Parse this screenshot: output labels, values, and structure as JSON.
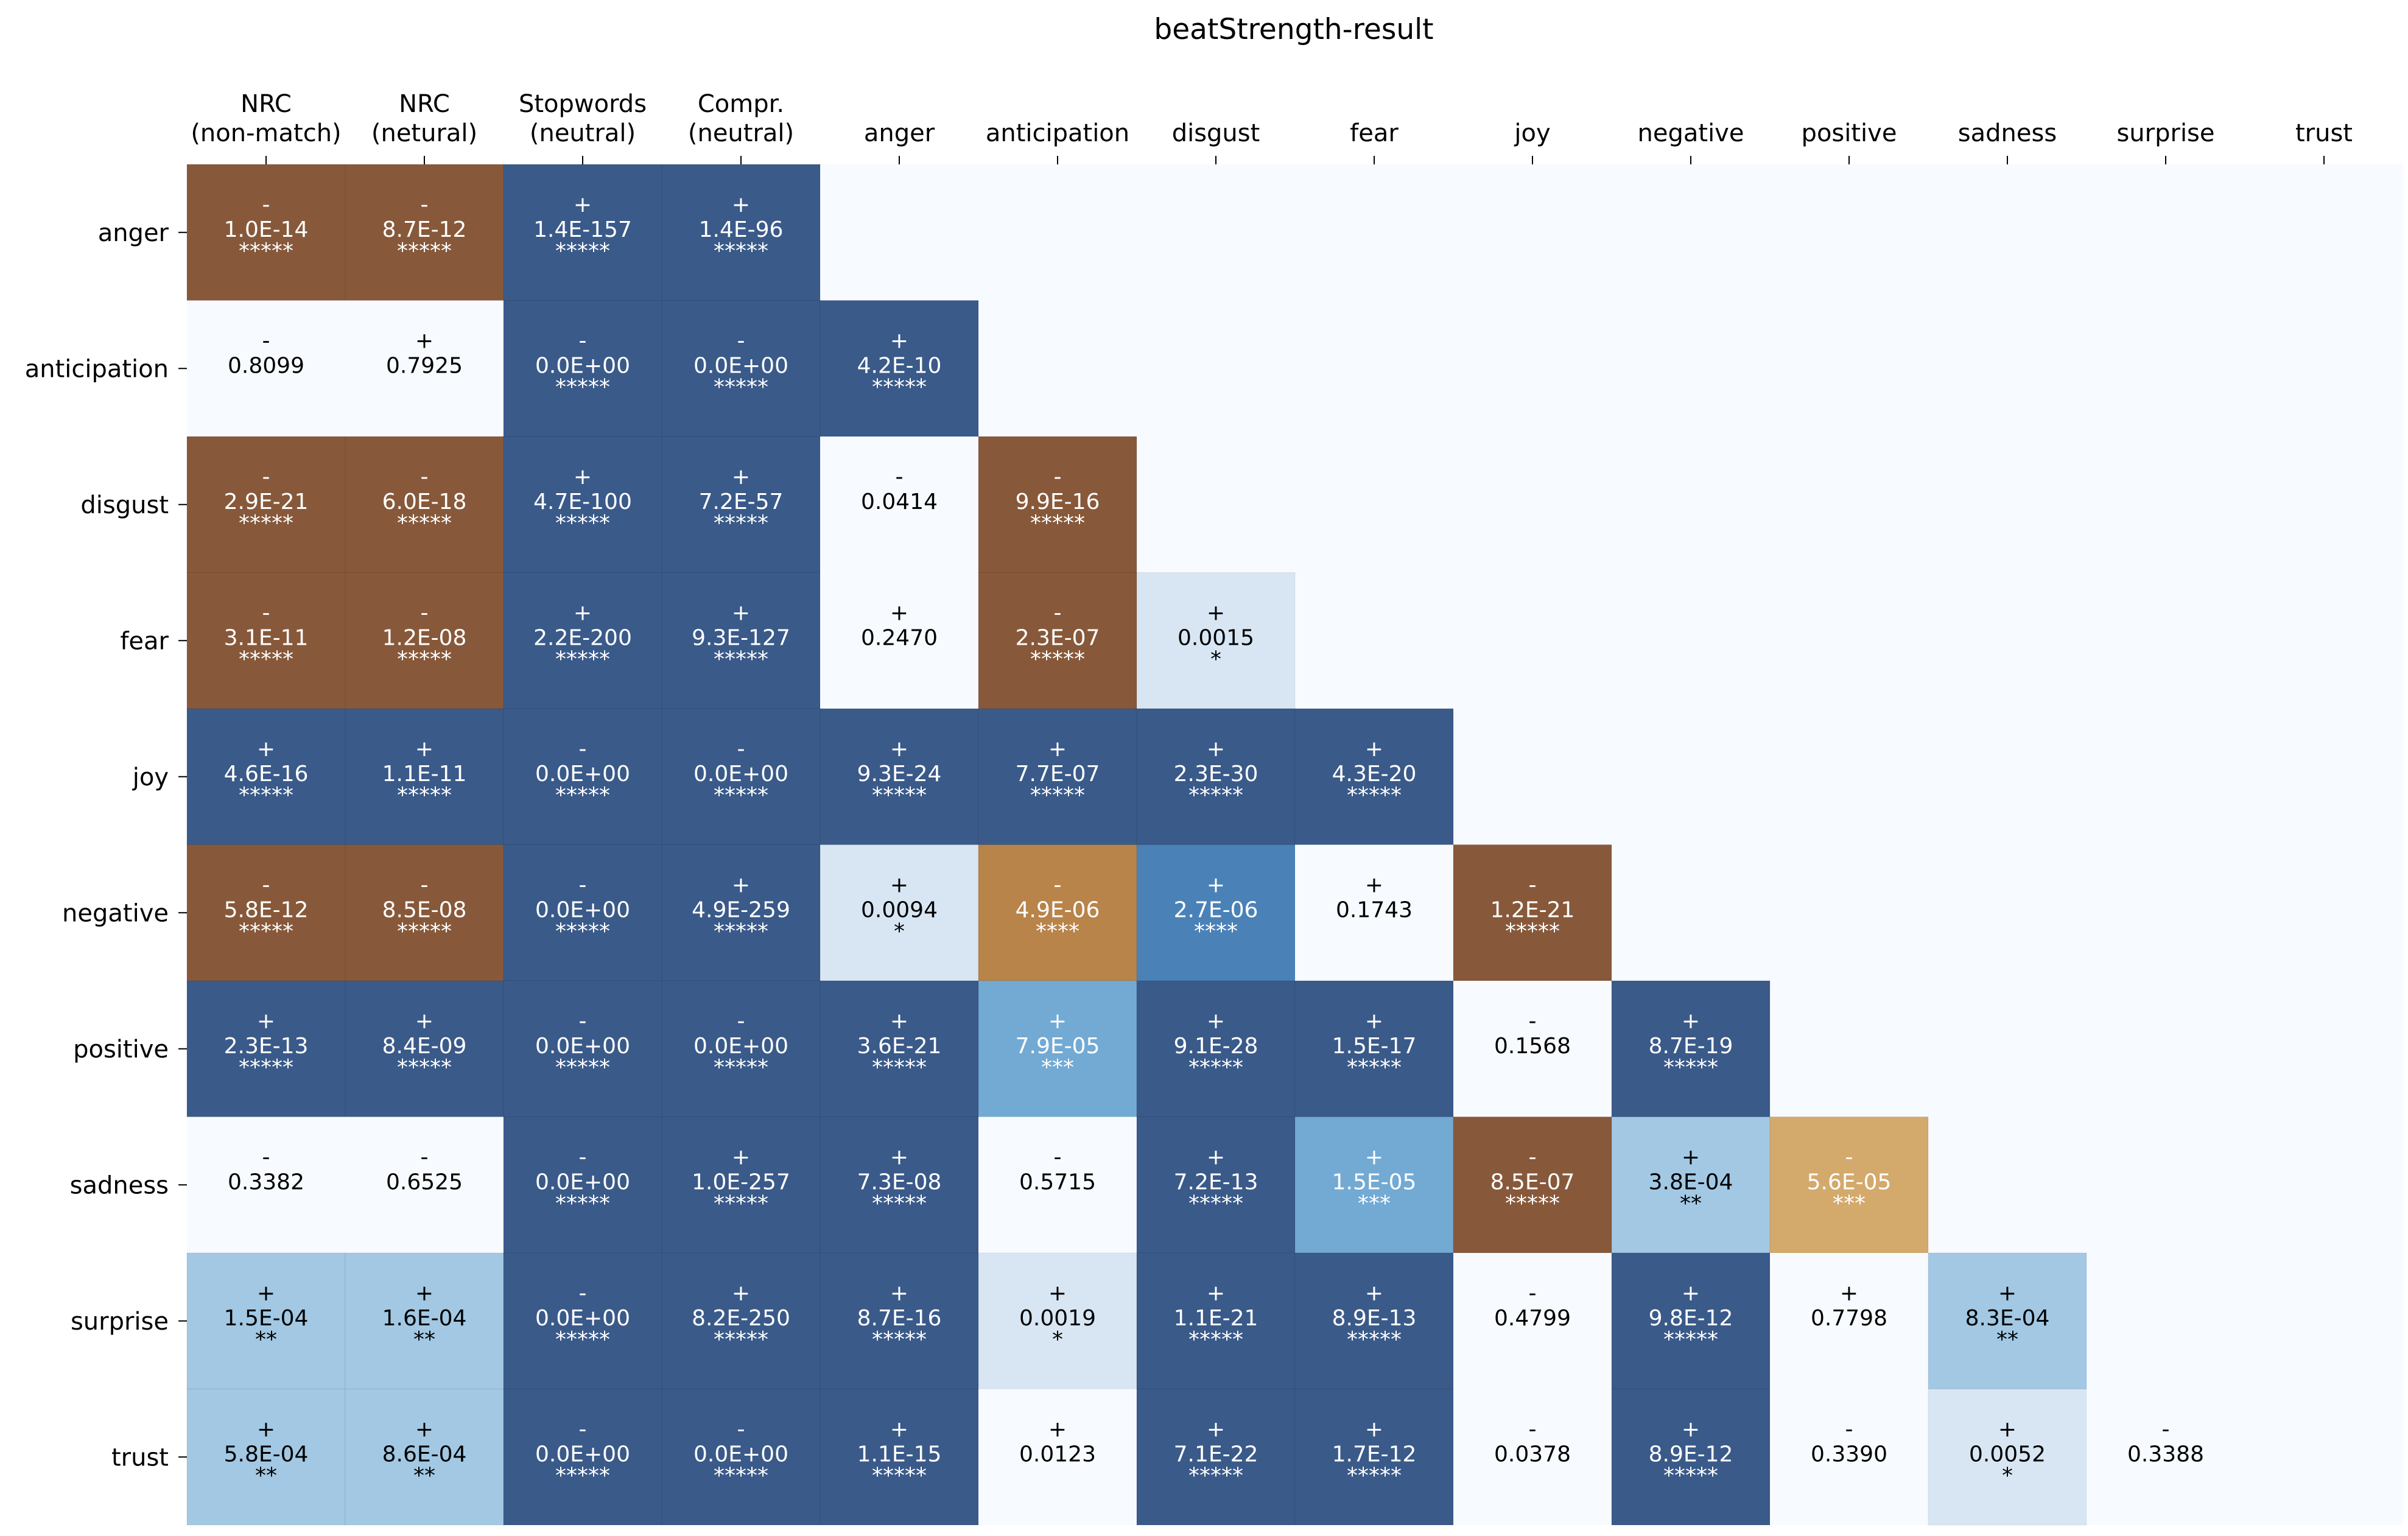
{
  "chart_data": {
    "type": "heatmap",
    "title": "beatStrength-result",
    "columns": [
      [
        "NRC",
        "(non-match)"
      ],
      [
        "NRC",
        "(netural)"
      ],
      [
        "Stopwords",
        "(neutral)"
      ],
      [
        "Compr.",
        "(neutral)"
      ],
      [
        "anger"
      ],
      [
        "anticipation"
      ],
      [
        "disgust"
      ],
      [
        "fear"
      ],
      [
        "joy"
      ],
      [
        "negative"
      ],
      [
        "positive"
      ],
      [
        "sadness"
      ],
      [
        "surprise"
      ],
      [
        "trust"
      ]
    ],
    "rows": [
      "anger",
      "anticipation",
      "disgust",
      "fear",
      "joy",
      "negative",
      "positive",
      "sadness",
      "surprise",
      "trust"
    ],
    "colors": {
      "background": "#f7fbff",
      "dark_brown": "#87593a",
      "mid_brown": "#b8844a",
      "light_brown": "#d4a96c",
      "dark_blue": "#3a5a89",
      "mid_blue": "#4a82b8",
      "blue": "#72aad4",
      "light_blue": "#a2c8e3",
      "pale_blue": "#d8e6f3"
    },
    "cells": [
      [
        [
          "-",
          "1.0E-14",
          "*****",
          "dark_brown"
        ],
        [
          "-",
          "8.7E-12",
          "*****",
          "dark_brown"
        ],
        [
          "+",
          "1.4E-157",
          "*****",
          "dark_blue"
        ],
        [
          "+",
          "1.4E-96",
          "*****",
          "dark_blue"
        ]
      ],
      [
        [
          "-",
          "0.8099",
          "",
          "background"
        ],
        [
          "+",
          "0.7925",
          "",
          "background"
        ],
        [
          "-",
          "0.0E+00",
          "*****",
          "dark_blue"
        ],
        [
          "-",
          "0.0E+00",
          "*****",
          "dark_blue"
        ],
        [
          "+",
          "4.2E-10",
          "*****",
          "dark_blue"
        ]
      ],
      [
        [
          "-",
          "2.9E-21",
          "*****",
          "dark_brown"
        ],
        [
          "-",
          "6.0E-18",
          "*****",
          "dark_brown"
        ],
        [
          "+",
          "4.7E-100",
          "*****",
          "dark_blue"
        ],
        [
          "+",
          "7.2E-57",
          "*****",
          "dark_blue"
        ],
        [
          "-",
          "0.0414",
          "",
          "background"
        ],
        [
          "-",
          "9.9E-16",
          "*****",
          "dark_brown"
        ]
      ],
      [
        [
          "-",
          "3.1E-11",
          "*****",
          "dark_brown"
        ],
        [
          "-",
          "1.2E-08",
          "*****",
          "dark_brown"
        ],
        [
          "+",
          "2.2E-200",
          "*****",
          "dark_blue"
        ],
        [
          "+",
          "9.3E-127",
          "*****",
          "dark_blue"
        ],
        [
          "+",
          "0.2470",
          "",
          "background"
        ],
        [
          "-",
          "2.3E-07",
          "*****",
          "dark_brown"
        ],
        [
          "+",
          "0.0015",
          "*",
          "pale_blue"
        ]
      ],
      [
        [
          "+",
          "4.6E-16",
          "*****",
          "dark_blue"
        ],
        [
          "+",
          "1.1E-11",
          "*****",
          "dark_blue"
        ],
        [
          "-",
          "0.0E+00",
          "*****",
          "dark_blue"
        ],
        [
          "-",
          "0.0E+00",
          "*****",
          "dark_blue"
        ],
        [
          "+",
          "9.3E-24",
          "*****",
          "dark_blue"
        ],
        [
          "+",
          "7.7E-07",
          "*****",
          "dark_blue"
        ],
        [
          "+",
          "2.3E-30",
          "*****",
          "dark_blue"
        ],
        [
          "+",
          "4.3E-20",
          "*****",
          "dark_blue"
        ]
      ],
      [
        [
          "-",
          "5.8E-12",
          "*****",
          "dark_brown"
        ],
        [
          "-",
          "8.5E-08",
          "*****",
          "dark_brown"
        ],
        [
          "-",
          "0.0E+00",
          "*****",
          "dark_blue"
        ],
        [
          "+",
          "4.9E-259",
          "*****",
          "dark_blue"
        ],
        [
          "+",
          "0.0094",
          "*",
          "pale_blue"
        ],
        [
          "-",
          "4.9E-06",
          "****",
          "mid_brown"
        ],
        [
          "+",
          "2.7E-06",
          "****",
          "mid_blue"
        ],
        [
          "+",
          "0.1743",
          "",
          "background"
        ],
        [
          "-",
          "1.2E-21",
          "*****",
          "dark_brown"
        ]
      ],
      [
        [
          "+",
          "2.3E-13",
          "*****",
          "dark_blue"
        ],
        [
          "+",
          "8.4E-09",
          "*****",
          "dark_blue"
        ],
        [
          "-",
          "0.0E+00",
          "*****",
          "dark_blue"
        ],
        [
          "-",
          "0.0E+00",
          "*****",
          "dark_blue"
        ],
        [
          "+",
          "3.6E-21",
          "*****",
          "dark_blue"
        ],
        [
          "+",
          "7.9E-05",
          "***",
          "blue"
        ],
        [
          "+",
          "9.1E-28",
          "*****",
          "dark_blue"
        ],
        [
          "+",
          "1.5E-17",
          "*****",
          "dark_blue"
        ],
        [
          "-",
          "0.1568",
          "",
          "background"
        ],
        [
          "+",
          "8.7E-19",
          "*****",
          "dark_blue"
        ]
      ],
      [
        [
          "-",
          "0.3382",
          "",
          "background"
        ],
        [
          "-",
          "0.6525",
          "",
          "background"
        ],
        [
          "-",
          "0.0E+00",
          "*****",
          "dark_blue"
        ],
        [
          "+",
          "1.0E-257",
          "*****",
          "dark_blue"
        ],
        [
          "+",
          "7.3E-08",
          "*****",
          "dark_blue"
        ],
        [
          "-",
          "0.5715",
          "",
          "background"
        ],
        [
          "+",
          "7.2E-13",
          "*****",
          "dark_blue"
        ],
        [
          "+",
          "1.5E-05",
          "***",
          "blue"
        ],
        [
          "-",
          "8.5E-07",
          "*****",
          "dark_brown"
        ],
        [
          "+",
          "3.8E-04",
          "**",
          "light_blue"
        ],
        [
          "-",
          "5.6E-05",
          "***",
          "light_brown"
        ]
      ],
      [
        [
          "+",
          "1.5E-04",
          "**",
          "light_blue"
        ],
        [
          "+",
          "1.6E-04",
          "**",
          "light_blue"
        ],
        [
          "-",
          "0.0E+00",
          "*****",
          "dark_blue"
        ],
        [
          "+",
          "8.2E-250",
          "*****",
          "dark_blue"
        ],
        [
          "+",
          "8.7E-16",
          "*****",
          "dark_blue"
        ],
        [
          "+",
          "0.0019",
          "*",
          "pale_blue"
        ],
        [
          "+",
          "1.1E-21",
          "*****",
          "dark_blue"
        ],
        [
          "+",
          "8.9E-13",
          "*****",
          "dark_blue"
        ],
        [
          "-",
          "0.4799",
          "",
          "background"
        ],
        [
          "+",
          "9.8E-12",
          "*****",
          "dark_blue"
        ],
        [
          "+",
          "0.7798",
          "",
          "background"
        ],
        [
          "+",
          "8.3E-04",
          "**",
          "light_blue"
        ]
      ],
      [
        [
          "+",
          "5.8E-04",
          "**",
          "light_blue"
        ],
        [
          "+",
          "8.6E-04",
          "**",
          "light_blue"
        ],
        [
          "-",
          "0.0E+00",
          "*****",
          "dark_blue"
        ],
        [
          "-",
          "0.0E+00",
          "*****",
          "dark_blue"
        ],
        [
          "+",
          "1.1E-15",
          "*****",
          "dark_blue"
        ],
        [
          "+",
          "0.0123",
          "",
          "background"
        ],
        [
          "+",
          "7.1E-22",
          "*****",
          "dark_blue"
        ],
        [
          "+",
          "1.7E-12",
          "*****",
          "dark_blue"
        ],
        [
          "-",
          "0.0378",
          "",
          "background"
        ],
        [
          "+",
          "8.9E-12",
          "*****",
          "dark_blue"
        ],
        [
          "-",
          "0.3390",
          "",
          "background"
        ],
        [
          "+",
          "0.0052",
          "*",
          "pale_blue"
        ],
        [
          "-",
          "0.3388",
          "",
          "background"
        ]
      ]
    ]
  }
}
